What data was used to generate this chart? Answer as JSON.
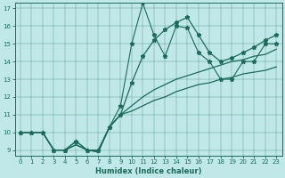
{
  "xlabel": "Humidex (Indice chaleur)",
  "bg_color": "#c0e8e8",
  "line_color": "#1a6b5a",
  "xlim": [
    -0.5,
    23.5
  ],
  "ylim": [
    8.7,
    17.3
  ],
  "yticks": [
    9,
    10,
    11,
    12,
    13,
    14,
    15,
    16,
    17
  ],
  "xticks": [
    0,
    1,
    2,
    3,
    4,
    5,
    6,
    7,
    8,
    9,
    10,
    11,
    12,
    13,
    14,
    15,
    16,
    17,
    18,
    19,
    20,
    21,
    22,
    23
  ],
  "line1_x": [
    0,
    1,
    2,
    3,
    4,
    5,
    6,
    7,
    8,
    9,
    10,
    11,
    12,
    13,
    14,
    15,
    16,
    17,
    18,
    19,
    20,
    21,
    22,
    23
  ],
  "line1_y": [
    10,
    10,
    10,
    9,
    9,
    9.5,
    9,
    9,
    10.3,
    11.5,
    15,
    17.3,
    15.5,
    14.3,
    16,
    15.9,
    14.5,
    14,
    13,
    13,
    14,
    14,
    15,
    15
  ],
  "line2_x": [
    0,
    1,
    2,
    3,
    4,
    5,
    6,
    7,
    8,
    9,
    10,
    11,
    12,
    13,
    14,
    15,
    16,
    17,
    18,
    19,
    20,
    21,
    22,
    23
  ],
  "line2_y": [
    10,
    10,
    10,
    9,
    9,
    9.3,
    9,
    8.9,
    10.3,
    11,
    11.2,
    11.5,
    11.8,
    12.0,
    12.3,
    12.5,
    12.7,
    12.8,
    13.0,
    13.1,
    13.3,
    13.4,
    13.5,
    13.7
  ],
  "line3_x": [
    0,
    1,
    2,
    3,
    4,
    5,
    6,
    7,
    8,
    9,
    10,
    11,
    12,
    13,
    14,
    15,
    16,
    17,
    18,
    19,
    20,
    21,
    22,
    23
  ],
  "line3_y": [
    10,
    10,
    10,
    9,
    9,
    9.3,
    9,
    8.9,
    10.3,
    11,
    11.5,
    12.0,
    12.4,
    12.7,
    13.0,
    13.2,
    13.4,
    13.6,
    13.8,
    14.0,
    14.1,
    14.3,
    14.4,
    14.7
  ],
  "line4_x": [
    0,
    1,
    2,
    3,
    4,
    5,
    6,
    7,
    8,
    9,
    10,
    11,
    12,
    13,
    14,
    15,
    16,
    17,
    18,
    19,
    20,
    21,
    22,
    23
  ],
  "line4_y": [
    10,
    10,
    10,
    9,
    9,
    9.5,
    9,
    9,
    10.3,
    11,
    12.8,
    14.3,
    15.2,
    15.8,
    16.2,
    16.5,
    15.5,
    14.5,
    14,
    14.2,
    14.5,
    14.8,
    15.2,
    15.5
  ]
}
